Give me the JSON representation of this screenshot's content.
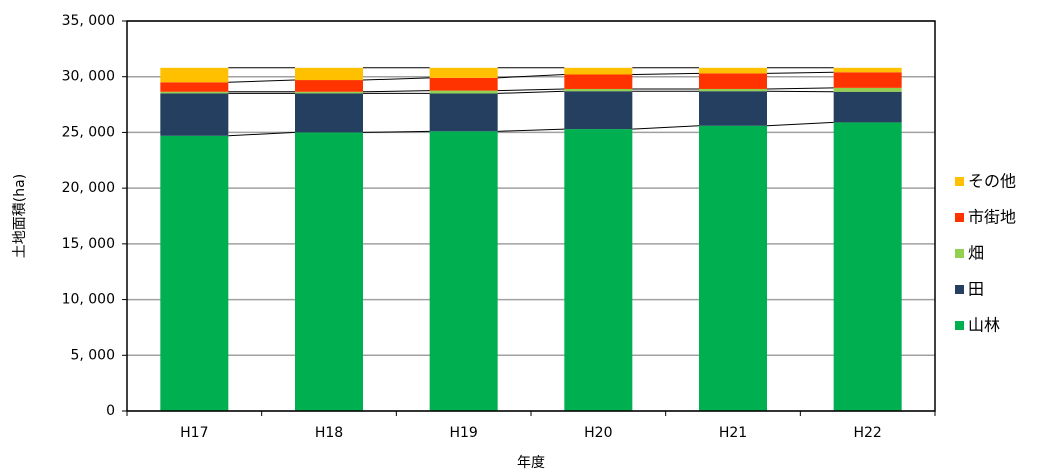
{
  "chart_data": {
    "type": "stacked-bar",
    "x_label": "年度",
    "y_label": "土地面積(ha)",
    "categories": [
      "H17",
      "H18",
      "H19",
      "H20",
      "H21",
      "H22"
    ],
    "series": [
      {
        "name": "山林",
        "color": "#00b050",
        "values": [
          24700,
          25000,
          25100,
          25300,
          25600,
          25900
        ]
      },
      {
        "name": "田",
        "color": "#243f60",
        "values": [
          3800,
          3500,
          3400,
          3400,
          3100,
          2750
        ]
      },
      {
        "name": "畑",
        "color": "#92d050",
        "values": [
          150,
          150,
          250,
          200,
          200,
          350
        ]
      },
      {
        "name": "市街地",
        "color": "#ff3300",
        "values": [
          850,
          1050,
          1150,
          1300,
          1400,
          1400
        ]
      },
      {
        "name": "その他",
        "color": "#ffc000",
        "values": [
          1300,
          1100,
          900,
          600,
          500,
          400
        ]
      }
    ],
    "ylim": [
      0,
      35000
    ],
    "yticks": [
      0,
      {
        "value": 5000,
        "label": "5, 000"
      },
      {
        "value": 10000,
        "label": "10, 000"
      },
      {
        "value": 15000,
        "label": "15, 000"
      },
      {
        "value": 20000,
        "label": "20, 000"
      },
      {
        "value": 25000,
        "label": "25, 000"
      },
      {
        "value": 30000,
        "label": "30, 000"
      },
      {
        "value": 35000,
        "label": "35, 000"
      }
    ],
    "grid": true,
    "series_lines": true,
    "legend": "right"
  }
}
